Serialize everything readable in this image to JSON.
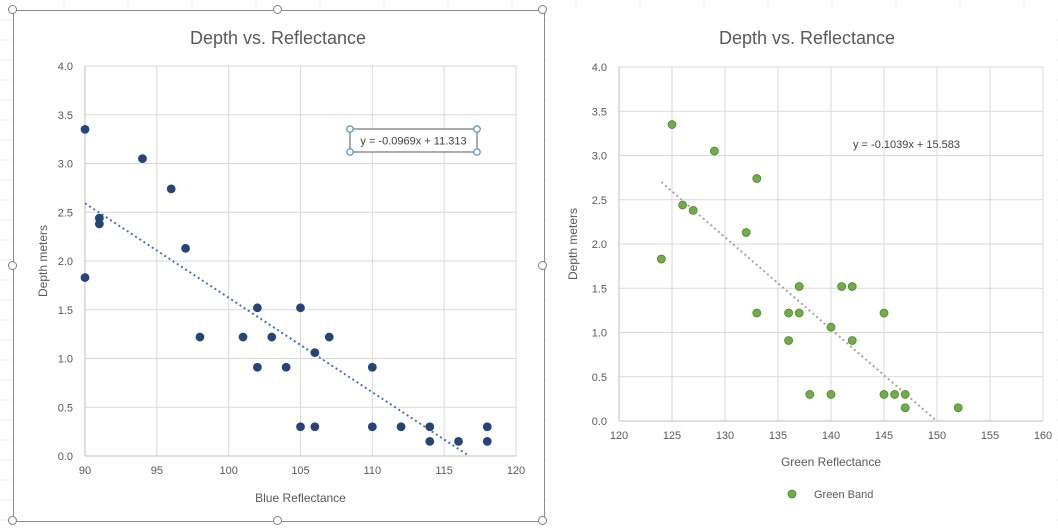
{
  "chart_data": [
    {
      "type": "scatter",
      "title": "Depth vs. Reflectance",
      "xlabel": "Blue Reflectance",
      "ylabel": "Depth meters",
      "xlim": [
        90,
        120
      ],
      "ylim": [
        0,
        4
      ],
      "xticks": [
        "90",
        "95",
        "100",
        "105",
        "110",
        "115",
        "120"
      ],
      "yticks": [
        "0.0",
        "0.5",
        "1.0",
        "1.5",
        "2.0",
        "2.5",
        "3.0",
        "3.5",
        "4.0"
      ],
      "grid": true,
      "legend": "none",
      "selected": true,
      "series": [
        {
          "color": "#264478",
          "points": [
            [
              90,
              3.35
            ],
            [
              90,
              1.83
            ],
            [
              91,
              2.44
            ],
            [
              91,
              2.38
            ],
            [
              94,
              3.05
            ],
            [
              96,
              2.74
            ],
            [
              97,
              2.13
            ],
            [
              98,
              1.22
            ],
            [
              101,
              1.22
            ],
            [
              102,
              1.52
            ],
            [
              102,
              0.91
            ],
            [
              103,
              1.22
            ],
            [
              104,
              0.91
            ],
            [
              105,
              1.52
            ],
            [
              105,
              0.3
            ],
            [
              106,
              1.06
            ],
            [
              106,
              0.3
            ],
            [
              107,
              1.22
            ],
            [
              110,
              0.91
            ],
            [
              110,
              0.3
            ],
            [
              112,
              0.3
            ],
            [
              114,
              0.3
            ],
            [
              114,
              0.15
            ],
            [
              116,
              0.15
            ],
            [
              118,
              0.3
            ],
            [
              118,
              0.15
            ]
          ]
        }
      ],
      "trendline": {
        "slope": -0.0969,
        "intercept": 11.313,
        "x_range": [
          90,
          116.75
        ],
        "color": "#4472c4",
        "equation": "y = -0.0969x + 11.313",
        "equation_selected": true
      }
    },
    {
      "type": "scatter",
      "title": "Depth vs. Reflectance",
      "xlabel": "Green Reflectance",
      "ylabel": "Depth meters",
      "xlim": [
        120,
        160
      ],
      "ylim": [
        0,
        4
      ],
      "xticks": [
        "120",
        "125",
        "130",
        "135",
        "140",
        "145",
        "150",
        "155",
        "160"
      ],
      "yticks": [
        "0.0",
        "0.5",
        "1.0",
        "1.5",
        "2.0",
        "2.5",
        "3.0",
        "3.5",
        "4.0"
      ],
      "grid": true,
      "legend": "bottom",
      "series": [
        {
          "name": "Green Band",
          "color": "#70ad47",
          "points": [
            [
              124,
              1.83
            ],
            [
              125,
              3.35
            ],
            [
              126,
              2.44
            ],
            [
              127,
              2.38
            ],
            [
              129,
              3.05
            ],
            [
              132,
              2.13
            ],
            [
              133,
              2.74
            ],
            [
              133,
              1.22
            ],
            [
              136,
              1.22
            ],
            [
              136,
              0.91
            ],
            [
              137,
              1.52
            ],
            [
              137,
              1.22
            ],
            [
              138,
              0.3
            ],
            [
              140,
              1.06
            ],
            [
              140,
              0.3
            ],
            [
              141,
              1.52
            ],
            [
              142,
              1.52
            ],
            [
              142,
              0.91
            ],
            [
              145,
              1.22
            ],
            [
              145,
              0.3
            ],
            [
              146,
              0.3
            ],
            [
              147,
              0.3
            ],
            [
              147,
              0.15
            ],
            [
              152,
              0.15
            ]
          ]
        }
      ],
      "trendline": {
        "slope": -0.1039,
        "intercept": 15.583,
        "x_range": [
          124,
          150
        ],
        "color": "#a5a5a5",
        "equation": "y = -0.1039x + 15.583",
        "equation_selected": false
      }
    }
  ]
}
